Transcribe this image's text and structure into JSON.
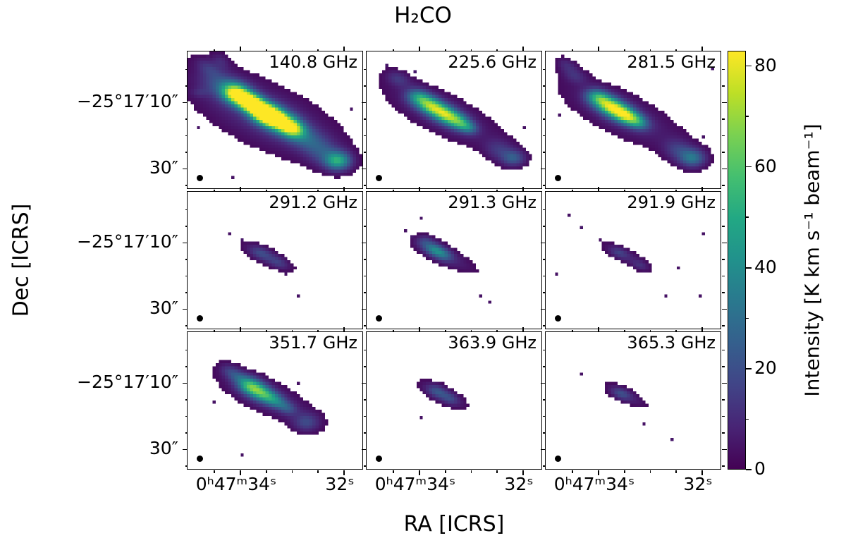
{
  "chart_data": {
    "type": "heatmap",
    "title": "H₂CO",
    "xlabel": "RA [ICRS]",
    "ylabel": "Dec [ICRS]",
    "x_tick_labels": [
      "0ʰ47ᵐ34ˢ",
      "32ˢ"
    ],
    "y_tick_labels": [
      "−25°17′10″",
      "30″"
    ],
    "colorbar": {
      "label": "Intensity [K km s⁻¹ beam⁻¹]",
      "ticks": [
        0,
        20,
        40,
        60,
        80
      ],
      "minor_ticks": [
        10,
        30,
        50,
        70
      ],
      "vmin": 0,
      "vmax": 83
    },
    "mask_threshold": 2.2,
    "colormap": {
      "name": "viridis",
      "stops": [
        [
          0.0,
          [
            68,
            1,
            84
          ]
        ],
        [
          0.1,
          [
            72,
            36,
            117
          ]
        ],
        [
          0.2,
          [
            65,
            68,
            135
          ]
        ],
        [
          0.3,
          [
            53,
            95,
            141
          ]
        ],
        [
          0.4,
          [
            42,
            120,
            142
          ]
        ],
        [
          0.5,
          [
            33,
            145,
            140
          ]
        ],
        [
          0.6,
          [
            34,
            168,
            132
          ]
        ],
        [
          0.7,
          [
            68,
            191,
            112
          ]
        ],
        [
          0.8,
          [
            122,
            209,
            81
          ]
        ],
        [
          0.9,
          [
            189,
            223,
            38
          ]
        ],
        [
          1.0,
          [
            253,
            231,
            37
          ]
        ]
      ]
    },
    "axes": {
      "x_major": [
        0.3,
        0.888
      ],
      "x_minor": [
        0.153,
        0.447,
        0.594,
        0.741
      ],
      "y_major": [
        0.37,
        0.85
      ],
      "y_minor": [
        0.13,
        0.25,
        0.49,
        0.61,
        0.73,
        0.97
      ]
    },
    "panels": [
      {
        "label": "140.8 GHz",
        "blobs": [
          [
            0.45,
            0.47,
            0.3,
            0.125,
            33,
            13
          ],
          [
            0.22,
            0.26,
            0.1,
            0.06,
            33,
            20
          ],
          [
            0.28,
            0.31,
            0.055,
            0.045,
            33,
            72
          ],
          [
            0.36,
            0.375,
            0.055,
            0.042,
            33,
            86
          ],
          [
            0.445,
            0.45,
            0.06,
            0.045,
            33,
            86
          ],
          [
            0.52,
            0.505,
            0.085,
            0.05,
            33,
            80
          ],
          [
            0.6,
            0.565,
            0.05,
            0.04,
            33,
            42
          ],
          [
            0.68,
            0.64,
            0.08,
            0.055,
            33,
            18
          ],
          [
            0.86,
            0.8,
            0.05,
            0.045,
            0,
            46
          ],
          [
            0.78,
            0.74,
            0.07,
            0.06,
            33,
            15
          ],
          [
            0.12,
            0.12,
            0.06,
            0.035,
            45,
            10
          ],
          [
            0.19,
            0.07,
            0.045,
            0.03,
            60,
            8
          ],
          [
            0.07,
            0.3,
            0.035,
            0.025,
            0,
            6
          ]
        ],
        "speckles": [
          [
            0.03,
            0.1,
            5
          ],
          [
            0.1,
            0.03,
            5
          ],
          [
            0.93,
            0.42,
            4
          ],
          [
            0.05,
            0.55,
            4
          ],
          [
            0.25,
            0.92,
            4
          ]
        ]
      },
      {
        "label": "225.6 GHz",
        "blobs": [
          [
            0.44,
            0.46,
            0.24,
            0.085,
            33,
            10
          ],
          [
            0.3,
            0.34,
            0.05,
            0.04,
            33,
            40
          ],
          [
            0.37,
            0.4,
            0.05,
            0.04,
            33,
            52
          ],
          [
            0.445,
            0.455,
            0.05,
            0.04,
            33,
            55
          ],
          [
            0.52,
            0.51,
            0.05,
            0.038,
            33,
            45
          ],
          [
            0.58,
            0.555,
            0.04,
            0.03,
            33,
            25
          ],
          [
            0.84,
            0.78,
            0.045,
            0.04,
            0,
            22
          ],
          [
            0.76,
            0.72,
            0.06,
            0.05,
            33,
            12
          ],
          [
            0.18,
            0.2,
            0.05,
            0.035,
            33,
            12
          ]
        ],
        "speckles": [
          [
            0.1,
            0.1,
            5
          ],
          [
            0.26,
            0.13,
            6
          ],
          [
            0.9,
            0.55,
            4
          ]
        ]
      },
      {
        "label": "281.5 GHz",
        "blobs": [
          [
            0.44,
            0.46,
            0.25,
            0.09,
            33,
            10
          ],
          [
            0.3,
            0.34,
            0.05,
            0.04,
            33,
            45
          ],
          [
            0.375,
            0.405,
            0.055,
            0.042,
            33,
            62
          ],
          [
            0.45,
            0.46,
            0.05,
            0.04,
            33,
            58
          ],
          [
            0.52,
            0.51,
            0.05,
            0.035,
            33,
            40
          ],
          [
            0.84,
            0.78,
            0.05,
            0.045,
            0,
            30
          ],
          [
            0.76,
            0.72,
            0.06,
            0.05,
            33,
            14
          ],
          [
            0.17,
            0.18,
            0.05,
            0.035,
            33,
            10
          ],
          [
            0.12,
            0.1,
            0.045,
            0.03,
            45,
            9
          ]
        ],
        "speckles": [
          [
            0.95,
            0.12,
            5
          ],
          [
            0.07,
            0.45,
            4
          ],
          [
            0.9,
            0.62,
            4
          ]
        ]
      },
      {
        "label": "291.2 GHz",
        "blobs": [
          [
            0.46,
            0.475,
            0.11,
            0.035,
            33,
            8
          ],
          [
            0.42,
            0.45,
            0.05,
            0.03,
            33,
            12
          ],
          [
            0.52,
            0.52,
            0.04,
            0.025,
            33,
            9
          ]
        ],
        "speckles": [
          [
            0.3,
            0.34,
            5
          ],
          [
            0.24,
            0.3,
            4
          ],
          [
            0.62,
            0.74,
            4
          ],
          [
            0.55,
            0.6,
            4
          ]
        ]
      },
      {
        "label": "291.3 GHz",
        "blobs": [
          [
            0.45,
            0.47,
            0.13,
            0.04,
            33,
            9
          ],
          [
            0.385,
            0.42,
            0.045,
            0.03,
            33,
            28
          ],
          [
            0.44,
            0.46,
            0.04,
            0.03,
            33,
            18
          ],
          [
            0.33,
            0.36,
            0.035,
            0.03,
            0,
            11
          ]
        ],
        "speckles": [
          [
            0.25,
            0.31,
            6
          ],
          [
            0.21,
            0.27,
            4
          ],
          [
            0.64,
            0.74,
            4
          ],
          [
            0.7,
            0.8,
            4
          ],
          [
            0.3,
            0.18,
            4
          ]
        ]
      },
      {
        "label": "291.9 GHz",
        "blobs": [
          [
            0.46,
            0.47,
            0.11,
            0.032,
            33,
            7
          ],
          [
            0.42,
            0.445,
            0.04,
            0.025,
            33,
            10
          ],
          [
            0.54,
            0.54,
            0.035,
            0.022,
            33,
            8
          ]
        ],
        "speckles": [
          [
            0.2,
            0.24,
            5
          ],
          [
            0.3,
            0.33,
            4
          ],
          [
            0.67,
            0.76,
            4
          ],
          [
            0.75,
            0.55,
            4
          ],
          [
            0.13,
            0.15,
            4
          ],
          [
            0.9,
            0.3,
            4
          ],
          [
            0.88,
            0.75,
            4
          ],
          [
            0.06,
            0.6,
            4
          ]
        ]
      },
      {
        "label": "351.7 GHz",
        "blobs": [
          [
            0.45,
            0.47,
            0.2,
            0.07,
            33,
            10
          ],
          [
            0.36,
            0.395,
            0.05,
            0.04,
            33,
            48
          ],
          [
            0.43,
            0.45,
            0.05,
            0.038,
            33,
            42
          ],
          [
            0.5,
            0.5,
            0.045,
            0.032,
            33,
            26
          ],
          [
            0.57,
            0.555,
            0.04,
            0.03,
            33,
            16
          ],
          [
            0.68,
            0.66,
            0.05,
            0.045,
            0,
            16
          ],
          [
            0.29,
            0.33,
            0.045,
            0.032,
            33,
            16
          ],
          [
            0.24,
            0.28,
            0.04,
            0.03,
            33,
            10
          ]
        ],
        "speckles": [
          [
            0.62,
            0.36,
            4
          ],
          [
            0.15,
            0.5,
            4
          ],
          [
            0.3,
            0.88,
            4
          ]
        ]
      },
      {
        "label": "363.9 GHz",
        "blobs": [
          [
            0.44,
            0.46,
            0.1,
            0.035,
            33,
            9
          ],
          [
            0.405,
            0.435,
            0.045,
            0.03,
            33,
            15
          ],
          [
            0.48,
            0.49,
            0.035,
            0.025,
            33,
            10
          ]
        ],
        "speckles": [
          [
            0.3,
            0.62,
            4
          ]
        ]
      },
      {
        "label": "365.3 GHz",
        "blobs": [
          [
            0.46,
            0.465,
            0.09,
            0.03,
            33,
            8
          ],
          [
            0.43,
            0.45,
            0.04,
            0.027,
            33,
            13
          ]
        ],
        "speckles": [
          [
            0.72,
            0.78,
            5
          ],
          [
            0.2,
            0.3,
            4
          ],
          [
            0.55,
            0.66,
            4
          ]
        ]
      }
    ]
  }
}
